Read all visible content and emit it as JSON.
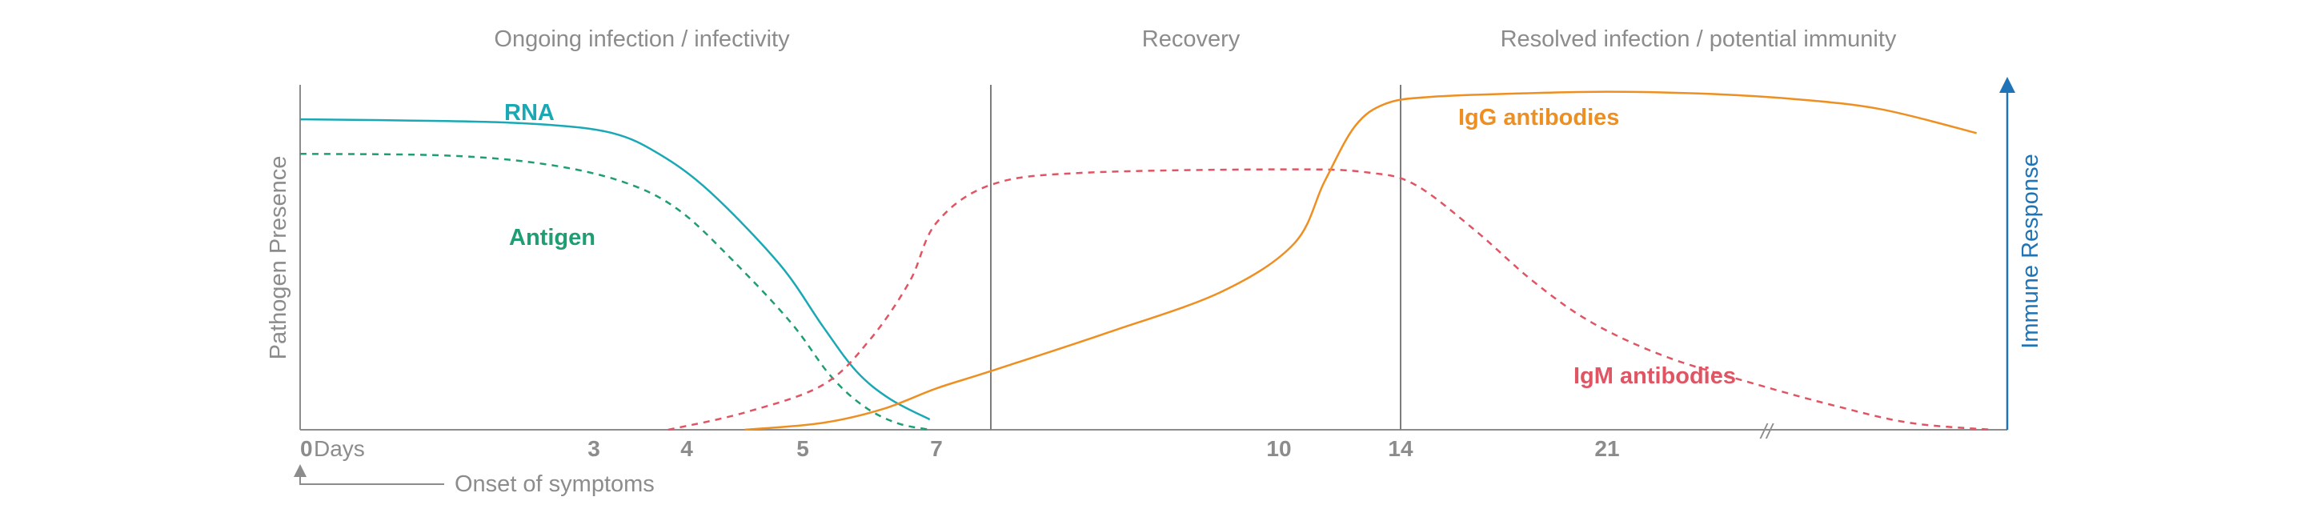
{
  "chart_data": {
    "type": "line",
    "phases": [
      {
        "label": "Ongoing infection / infectivity",
        "from": 0,
        "to": 7.5
      },
      {
        "label": "Recovery",
        "from": 7.5,
        "to": 14
      },
      {
        "label": "Resolved infection / potential immunity",
        "from": 14,
        "to": 34
      }
    ],
    "xlabel": "Days",
    "x_ticks": [
      0,
      3,
      4,
      5,
      7,
      10,
      14,
      21
    ],
    "x_break_note": "//",
    "ylabel_left": "Pathogen Presence",
    "ylabel_right": "Immune Response",
    "phase_boundaries": [
      7.5,
      14
    ],
    "annotation": {
      "label": "Onset of symptoms",
      "x": 0
    },
    "series": [
      {
        "name": "RNA",
        "style": "solid",
        "color": "#1aa9b4",
        "points": [
          [
            0,
            0.9
          ],
          [
            1.5,
            0.895
          ],
          [
            2.5,
            0.885
          ],
          [
            3.2,
            0.86
          ],
          [
            3.7,
            0.8
          ],
          [
            4.2,
            0.69
          ],
          [
            4.8,
            0.48
          ],
          [
            5.3,
            0.3
          ],
          [
            5.8,
            0.17
          ],
          [
            6.3,
            0.09
          ],
          [
            6.9,
            0.03
          ]
        ]
      },
      {
        "name": "Antigen",
        "style": "dashed",
        "color": "#1f9e73",
        "points": [
          [
            0,
            0.8
          ],
          [
            1.5,
            0.795
          ],
          [
            2.5,
            0.77
          ],
          [
            3.3,
            0.72
          ],
          [
            3.9,
            0.64
          ],
          [
            4.4,
            0.49
          ],
          [
            4.9,
            0.31
          ],
          [
            5.4,
            0.16
          ],
          [
            5.9,
            0.07
          ],
          [
            6.4,
            0.02
          ],
          [
            6.9,
            0.0
          ]
        ]
      },
      {
        "name": "IgM antibodies",
        "style": "dashed",
        "color": "#e05563",
        "points": [
          [
            3.8,
            0.0
          ],
          [
            4.5,
            0.05
          ],
          [
            5.3,
            0.13
          ],
          [
            6.0,
            0.26
          ],
          [
            6.6,
            0.43
          ],
          [
            7.0,
            0.6
          ],
          [
            7.5,
            0.71
          ],
          [
            8.3,
            0.745
          ],
          [
            10.5,
            0.755
          ],
          [
            13.0,
            0.745
          ],
          [
            14.5,
            0.71
          ],
          [
            16.5,
            0.58
          ],
          [
            18.5,
            0.43
          ],
          [
            20.5,
            0.31
          ],
          [
            23.0,
            0.21
          ],
          [
            26.0,
            0.13
          ],
          [
            28.5,
            0.07
          ],
          [
            31.0,
            0.02
          ],
          [
            33.7,
            0.0
          ]
        ]
      },
      {
        "name": "IgG antibodies",
        "style": "solid",
        "color": "#ee8f22",
        "points": [
          [
            4.5,
            0.0
          ],
          [
            5.3,
            0.02
          ],
          [
            6.2,
            0.06
          ],
          [
            7.0,
            0.12
          ],
          [
            7.5,
            0.17
          ],
          [
            8.5,
            0.28
          ],
          [
            9.5,
            0.4
          ],
          [
            10.5,
            0.54
          ],
          [
            11.5,
            0.72
          ],
          [
            12.5,
            0.88
          ],
          [
            13.5,
            0.945
          ],
          [
            15.0,
            0.965
          ],
          [
            18.0,
            0.975
          ],
          [
            21.0,
            0.98
          ],
          [
            24.0,
            0.975
          ],
          [
            27.0,
            0.96
          ],
          [
            30.0,
            0.93
          ],
          [
            33.2,
            0.86
          ]
        ]
      }
    ]
  },
  "colors": {
    "axis": "#8c8c8c",
    "text_grey": "#8c8c8c",
    "right_axis": "#1e74b7",
    "rna": "#1aa9b4",
    "antigen": "#1f9e73",
    "igm": "#e05563",
    "igg": "#ee8f22"
  }
}
